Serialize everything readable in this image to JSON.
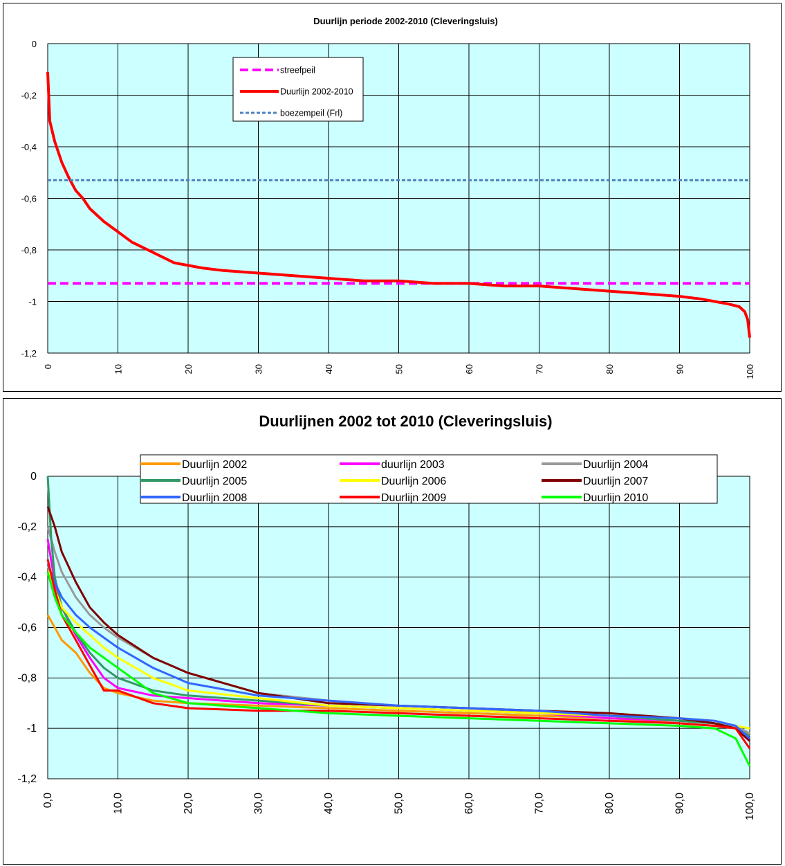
{
  "chart_data": [
    {
      "type": "line",
      "title": "Duurlijn periode 2002-2010 (Cleveringsluis)",
      "xlim": [
        0,
        100
      ],
      "ylim": [
        -1.2,
        0
      ],
      "xticks": [
        0,
        10,
        20,
        30,
        40,
        50,
        60,
        70,
        80,
        90,
        100
      ],
      "xtick_labels": [
        "0",
        "10",
        "20",
        "30",
        "40",
        "50",
        "60",
        "70",
        "80",
        "90",
        "100"
      ],
      "yticks": [
        0,
        -0.2,
        -0.4,
        -0.6,
        -0.8,
        -1,
        -1.2
      ],
      "ytick_labels": [
        "0",
        "-0,2",
        "-0,4",
        "-0,6",
        "-0,8",
        "-1",
        "-1,2"
      ],
      "plot_background": "#ccffff",
      "grid": true,
      "legend": "top-left inside",
      "series": [
        {
          "name": "streefpeil",
          "color": "#ff00ff",
          "dash": "dashed",
          "x": [
            0,
            100
          ],
          "y": [
            -0.93,
            -0.93
          ]
        },
        {
          "name": "Duurlijn 2002-2010",
          "color": "#ff0000",
          "dash": "solid",
          "x": [
            0,
            0.3,
            1,
            2,
            3,
            4,
            5,
            6,
            8,
            10,
            12,
            15,
            18,
            20,
            22,
            25,
            30,
            35,
            40,
            45,
            50,
            55,
            60,
            65,
            70,
            75,
            80,
            85,
            90,
            93,
            95,
            97,
            98.5,
            99.3,
            99.7,
            100
          ],
          "y": [
            -0.11,
            -0.3,
            -0.38,
            -0.46,
            -0.52,
            -0.57,
            -0.6,
            -0.64,
            -0.69,
            -0.73,
            -0.77,
            -0.81,
            -0.85,
            -0.86,
            -0.87,
            -0.88,
            -0.89,
            -0.9,
            -0.91,
            -0.92,
            -0.92,
            -0.93,
            -0.93,
            -0.94,
            -0.94,
            -0.95,
            -0.96,
            -0.97,
            -0.98,
            -0.99,
            -1.0,
            -1.01,
            -1.02,
            -1.04,
            -1.07,
            -1.14
          ]
        },
        {
          "name": "boezempeil (Frl)",
          "color": "#4f81bd",
          "dash": "dotted",
          "x": [
            0,
            100
          ],
          "y": [
            -0.53,
            -0.53
          ]
        }
      ]
    },
    {
      "type": "line",
      "title": "Duurlijnen  2002 tot 2010 (Cleveringsluis)",
      "xlim": [
        0,
        100
      ],
      "ylim": [
        -1.2,
        0
      ],
      "xticks": [
        0,
        10,
        20,
        30,
        40,
        50,
        60,
        70,
        80,
        90,
        100
      ],
      "xtick_labels": [
        "0,0",
        "10,0",
        "20,0",
        "30,0",
        "40,0",
        "50,0",
        "60,0",
        "70,0",
        "80,0",
        "90,0",
        "100,0"
      ],
      "yticks": [
        0,
        -0.2,
        -0.4,
        -0.6,
        -0.8,
        -1,
        -1.2
      ],
      "ytick_labels": [
        "0",
        "-0,2",
        "-0,4",
        "-0,6",
        "-0,8",
        "-1",
        "-1,2"
      ],
      "plot_background": "#ccffff",
      "grid": true,
      "legend": "top",
      "series": [
        {
          "name": "Duurlijn 2002",
          "color": "#ff9900",
          "x": [
            0,
            1,
            2,
            4,
            6,
            8,
            10,
            15,
            20,
            30,
            40,
            50,
            60,
            70,
            80,
            90,
            95,
            98,
            100
          ],
          "y": [
            -0.55,
            -0.6,
            -0.65,
            -0.7,
            -0.78,
            -0.84,
            -0.86,
            -0.89,
            -0.9,
            -0.91,
            -0.92,
            -0.93,
            -0.94,
            -0.95,
            -0.96,
            -0.98,
            -0.99,
            -1.0,
            -1.02
          ]
        },
        {
          "name": "duurlijn 2003",
          "color": "#ff00ff",
          "x": [
            0,
            1,
            2,
            4,
            6,
            8,
            10,
            15,
            20,
            30,
            40,
            50,
            60,
            70,
            80,
            90,
            95,
            98,
            100
          ],
          "y": [
            -0.25,
            -0.42,
            -0.52,
            -0.63,
            -0.72,
            -0.8,
            -0.84,
            -0.87,
            -0.88,
            -0.9,
            -0.91,
            -0.92,
            -0.93,
            -0.94,
            -0.96,
            -0.97,
            -0.98,
            -1.0,
            -1.05
          ]
        },
        {
          "name": "Duurlijn 2004",
          "color": "#999999",
          "x": [
            0,
            1,
            2,
            4,
            6,
            8,
            10,
            15,
            20,
            30,
            40,
            50,
            60,
            70,
            80,
            90,
            95,
            98,
            100
          ],
          "y": [
            -0.2,
            -0.3,
            -0.38,
            -0.48,
            -0.55,
            -0.6,
            -0.64,
            -0.72,
            -0.78,
            -0.86,
            -0.89,
            -0.91,
            -0.92,
            -0.94,
            -0.95,
            -0.97,
            -0.98,
            -0.99,
            -1.02
          ]
        },
        {
          "name": "Duurlijn 2005",
          "color": "#339966",
          "x": [
            0,
            0.5,
            1,
            2,
            4,
            6,
            8,
            10,
            15,
            20,
            30,
            40,
            50,
            60,
            70,
            80,
            90,
            95,
            98,
            100
          ],
          "y": [
            0,
            -0.25,
            -0.4,
            -0.52,
            -0.62,
            -0.7,
            -0.76,
            -0.8,
            -0.85,
            -0.87,
            -0.89,
            -0.91,
            -0.92,
            -0.93,
            -0.94,
            -0.95,
            -0.97,
            -0.98,
            -1.0,
            -1.03
          ]
        },
        {
          "name": "Duurlijn 2006",
          "color": "#ffff00",
          "x": [
            0,
            1,
            2,
            4,
            6,
            8,
            10,
            15,
            20,
            30,
            40,
            50,
            60,
            70,
            80,
            90,
            95,
            98,
            100
          ],
          "y": [
            -0.35,
            -0.45,
            -0.52,
            -0.58,
            -0.63,
            -0.68,
            -0.72,
            -0.8,
            -0.85,
            -0.88,
            -0.91,
            -0.92,
            -0.93,
            -0.94,
            -0.95,
            -0.96,
            -0.97,
            -0.99,
            -1.0
          ]
        },
        {
          "name": "Duurlijn 2007",
          "color": "#800000",
          "x": [
            0,
            1,
            2,
            4,
            6,
            8,
            10,
            15,
            20,
            30,
            40,
            50,
            60,
            70,
            80,
            90,
            95,
            98,
            100
          ],
          "y": [
            -0.12,
            -0.2,
            -0.3,
            -0.42,
            -0.52,
            -0.58,
            -0.63,
            -0.72,
            -0.78,
            -0.86,
            -0.9,
            -0.91,
            -0.92,
            -0.93,
            -0.94,
            -0.96,
            -0.98,
            -1.0,
            -1.05
          ]
        },
        {
          "name": "Duurlijn 2008",
          "color": "#3366ff",
          "x": [
            0,
            1,
            2,
            4,
            6,
            8,
            10,
            15,
            20,
            30,
            40,
            50,
            60,
            70,
            80,
            90,
            95,
            98,
            100
          ],
          "y": [
            -0.35,
            -0.42,
            -0.48,
            -0.55,
            -0.6,
            -0.64,
            -0.68,
            -0.76,
            -0.82,
            -0.87,
            -0.89,
            -0.91,
            -0.92,
            -0.93,
            -0.95,
            -0.96,
            -0.97,
            -0.99,
            -1.04
          ]
        },
        {
          "name": "Duurlijn 2009",
          "color": "#ff0000",
          "x": [
            0,
            1,
            2,
            4,
            6,
            8,
            10,
            15,
            20,
            30,
            40,
            50,
            60,
            70,
            80,
            90,
            95,
            98,
            100
          ],
          "y": [
            -0.33,
            -0.45,
            -0.55,
            -0.65,
            -0.75,
            -0.85,
            -0.85,
            -0.9,
            -0.92,
            -0.93,
            -0.93,
            -0.94,
            -0.95,
            -0.96,
            -0.97,
            -0.98,
            -0.99,
            -1.0,
            -1.08
          ]
        },
        {
          "name": "Duurlijn 2010",
          "color": "#00ff00",
          "x": [
            0,
            1,
            2,
            4,
            6,
            8,
            10,
            15,
            20,
            30,
            40,
            50,
            60,
            70,
            80,
            90,
            95,
            98,
            100
          ],
          "y": [
            -0.38,
            -0.48,
            -0.55,
            -0.62,
            -0.68,
            -0.72,
            -0.76,
            -0.86,
            -0.9,
            -0.92,
            -0.94,
            -0.95,
            -0.96,
            -0.97,
            -0.98,
            -0.99,
            -1.0,
            -1.04,
            -1.15
          ]
        }
      ]
    }
  ]
}
